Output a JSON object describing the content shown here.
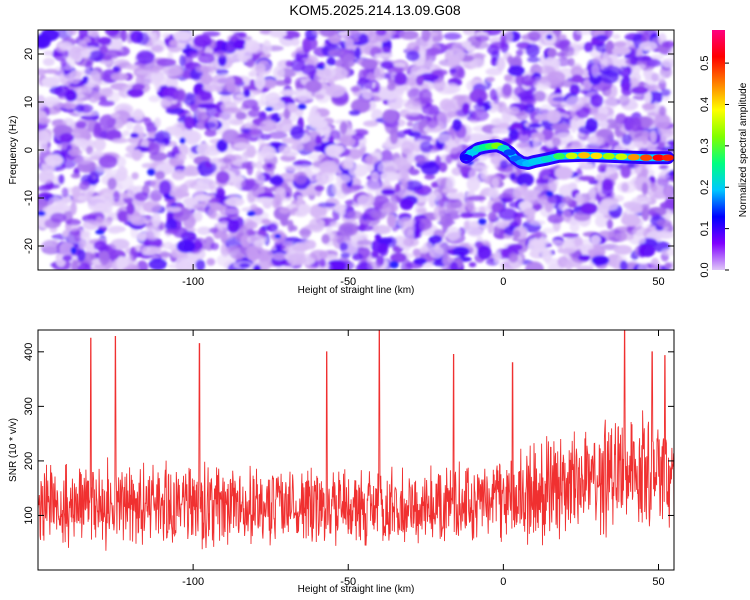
{
  "title": "KOM5.2025.214.13.09.G08",
  "chart_data": [
    {
      "type": "heatmap",
      "xlabel": "Height of straight line (km)",
      "ylabel": "Frequency (Hz)",
      "xlim": [
        -150,
        55
      ],
      "ylim": [
        -25,
        25
      ],
      "x_ticks": [
        -100,
        -50,
        0,
        50
      ],
      "y_ticks": [
        -20,
        -10,
        0,
        10,
        20
      ],
      "colorbar": {
        "label": "Normalized spectral amplitude",
        "range": [
          0.0,
          0.58
        ],
        "ticks": [
          0.0,
          0.1,
          0.2,
          0.3,
          0.4,
          0.5
        ],
        "colormap": [
          "#e0c8f8",
          "#8000ff",
          "#0000ff",
          "#00c8ff",
          "#00ff80",
          "#80ff00",
          "#ffff00",
          "#ff8000",
          "#ff0000",
          "#ff0080"
        ]
      },
      "signal_track": {
        "x": [
          -12,
          -10,
          -8,
          -6,
          -4,
          -2,
          0,
          2,
          4,
          6,
          8,
          10,
          14,
          18,
          22,
          26,
          30,
          34,
          38,
          42,
          46,
          50,
          53
        ],
        "y": [
          -1.5,
          -0.5,
          0.3,
          0.6,
          0.8,
          0.9,
          0.4,
          -0.5,
          -1.8,
          -2.6,
          -2.8,
          -2.4,
          -1.9,
          -1.3,
          -1.2,
          -1.1,
          -1.2,
          -1.3,
          -1.4,
          -1.5,
          -1.6,
          -1.6,
          -1.6
        ],
        "amplitude": [
          0.12,
          0.2,
          0.22,
          0.25,
          0.28,
          0.32,
          0.22,
          0.15,
          0.16,
          0.18,
          0.19,
          0.2,
          0.22,
          0.28,
          0.36,
          0.42,
          0.4,
          0.34,
          0.36,
          0.44,
          0.48,
          0.52,
          0.5
        ]
      }
    },
    {
      "type": "line",
      "xlabel": "Height of straight line (km)",
      "ylabel": "SNR (10 * v/v)",
      "xlim": [
        -150,
        55
      ],
      "ylim": [
        0,
        440
      ],
      "x_ticks": [
        -100,
        -50,
        0,
        50
      ],
      "y_ticks": [
        100,
        200,
        300,
        400
      ],
      "line_color": "#f03030",
      "series_envelope": {
        "x": [
          -150,
          -130,
          -110,
          -90,
          -70,
          -50,
          -30,
          -10,
          0,
          10,
          30,
          50,
          55
        ],
        "mean": [
          120,
          125,
          115,
          120,
          115,
          110,
          115,
          120,
          130,
          145,
          165,
          180,
          170
        ],
        "spread": [
          70,
          80,
          75,
          75,
          70,
          70,
          70,
          75,
          85,
          95,
          105,
          110,
          100
        ]
      },
      "peaks": [
        [
          -133,
          425
        ],
        [
          -125,
          428
        ],
        [
          -98,
          415
        ],
        [
          -57,
          400
        ],
        [
          -40,
          440
        ],
        [
          -16,
          395
        ],
        [
          3,
          380
        ],
        [
          39,
          440
        ],
        [
          48,
          400
        ],
        [
          52,
          393
        ]
      ]
    }
  ]
}
